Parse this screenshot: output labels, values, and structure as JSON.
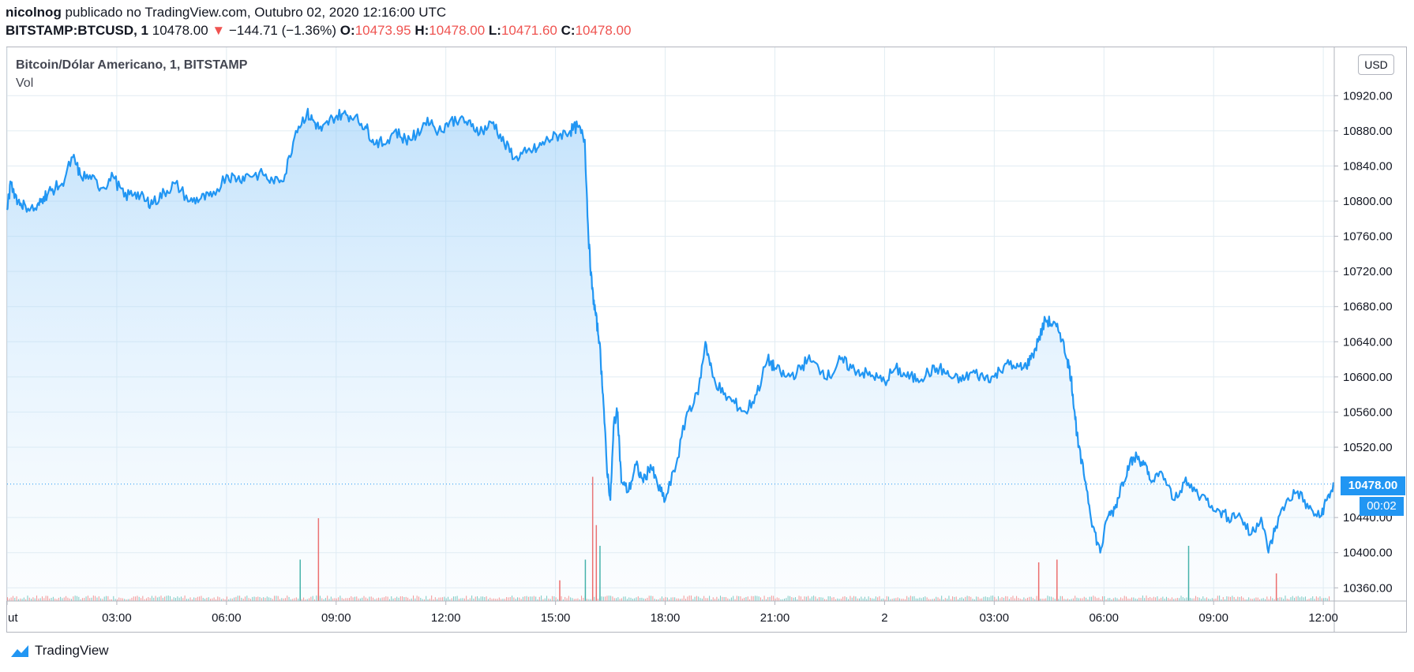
{
  "header": {
    "author": "nicolnog",
    "published_text": " publicado no TradingView.com, Outubro 02, 2020 12:16:00 UTC",
    "symbol": "BITSTAMP:BTCUSD, 1",
    "last": "10478.00",
    "arrow": "▼",
    "change": "−144.71 (−1.36%)",
    "o_label": "O:",
    "o_value": "10473.95",
    "h_label": "H:",
    "h_value": "10478.00",
    "l_label": "L:",
    "l_value": "10471.60",
    "c_label": "C:",
    "c_value": "10478.00"
  },
  "legend": {
    "title": "Bitcoin/Dólar Americano, 1, BITSTAMP",
    "volume": "Vol"
  },
  "currency_badge": "USD",
  "last_price_tag": "10478.00",
  "countdown_tag": "00:02",
  "brand": "TradingView",
  "colors": {
    "line": "#2196f3",
    "area_top": "#90caf9",
    "grid": "#e1ecf2",
    "vol_up": "#26a69a",
    "vol_down": "#ef5350",
    "tag_bg": "#2196f3"
  },
  "chart_data": {
    "type": "area",
    "y_ticks": [
      10360,
      10400,
      10440,
      10520,
      10560,
      10600,
      10640,
      10680,
      10720,
      10760,
      10800,
      10840,
      10880,
      10920
    ],
    "y_tick_labels": [
      "10360.00",
      "10400.00",
      "10440.00",
      "10520.00",
      "10560.00",
      "10600.00",
      "10640.00",
      "10680.00",
      "10720.00",
      "10760.00",
      "10800.00",
      "10840.00",
      "10880.00",
      "10920.00"
    ],
    "ylim": [
      10345,
      10975
    ],
    "x_tick_labels": [
      "ut",
      "03:00",
      "06:00",
      "09:00",
      "12:00",
      "15:00",
      "18:00",
      "21:00",
      "2",
      "03:00",
      "06:00",
      "09:00",
      "12:00"
    ],
    "x_tick_hours": [
      0,
      3,
      6,
      9,
      12,
      15,
      18,
      21,
      24,
      27,
      30,
      33,
      36
    ],
    "xlim_hours": [
      0,
      36.3
    ],
    "last_price": 10478,
    "series": [
      {
        "hours": [
          0,
          0.1,
          0.3,
          0.5,
          0.8,
          1.0,
          1.2,
          1.5,
          1.8,
          2.0,
          2.3,
          2.6,
          2.9,
          3.2,
          3.5,
          3.8,
          4.0,
          4.3,
          4.6,
          5.0,
          5.3,
          5.6,
          6.0,
          6.3,
          6.6,
          7.0,
          7.3,
          7.6,
          7.9,
          8.2,
          8.4,
          8.6,
          8.9,
          9.2,
          9.5,
          9.8,
          10.0,
          10.3,
          10.6,
          10.9,
          11.2,
          11.5,
          11.8,
          12.1,
          12.4,
          12.7,
          13.0,
          13.3,
          13.6,
          13.9,
          14.2,
          14.5,
          14.8,
          15.1,
          15.4,
          15.6,
          15.8,
          15.9,
          16.0,
          16.1,
          16.2,
          16.3,
          16.4,
          16.5,
          16.6,
          16.7,
          16.8,
          17.0,
          17.2,
          17.4,
          17.6,
          17.8,
          18.0,
          18.3,
          18.6,
          18.9,
          19.1,
          19.3,
          19.6,
          19.9,
          20.2,
          20.5,
          20.8,
          21.0,
          21.3,
          21.6,
          21.9,
          22.2,
          22.5,
          22.8,
          23.1,
          23.4,
          23.7,
          24.0,
          24.3,
          24.6,
          24.9,
          25.2,
          25.5,
          25.8,
          26.1,
          26.4,
          26.7,
          27.0,
          27.3,
          27.6,
          27.8,
          28.0,
          28.2,
          28.4,
          28.6,
          28.8,
          29.0,
          29.1,
          29.2,
          29.3,
          29.5,
          29.7,
          29.9,
          30.1,
          30.3,
          30.5,
          30.7,
          30.9,
          31.1,
          31.3,
          31.6,
          31.9,
          32.2,
          32.5,
          32.8,
          33.1,
          33.4,
          33.7,
          34.0,
          34.3,
          34.5,
          34.7,
          35.0,
          35.3,
          35.6,
          35.9,
          36.1,
          36.3
        ],
        "values": [
          10790,
          10820,
          10800,
          10795,
          10790,
          10805,
          10812,
          10820,
          10850,
          10830,
          10825,
          10815,
          10828,
          10805,
          10810,
          10800,
          10798,
          10810,
          10820,
          10800,
          10803,
          10805,
          10830,
          10825,
          10830,
          10830,
          10820,
          10830,
          10880,
          10900,
          10890,
          10880,
          10895,
          10900,
          10895,
          10885,
          10870,
          10865,
          10880,
          10870,
          10875,
          10895,
          10880,
          10890,
          10895,
          10885,
          10880,
          10890,
          10865,
          10850,
          10855,
          10860,
          10870,
          10875,
          10880,
          10885,
          10870,
          10760,
          10700,
          10670,
          10640,
          10580,
          10500,
          10460,
          10550,
          10560,
          10480,
          10470,
          10500,
          10480,
          10500,
          10475,
          10460,
          10500,
          10560,
          10580,
          10640,
          10600,
          10580,
          10570,
          10560,
          10580,
          10620,
          10610,
          10600,
          10605,
          10620,
          10610,
          10600,
          10620,
          10610,
          10605,
          10600,
          10595,
          10610,
          10600,
          10598,
          10605,
          10610,
          10600,
          10595,
          10605,
          10600,
          10600,
          10615,
          10610,
          10610,
          10620,
          10640,
          10665,
          10660,
          10650,
          10620,
          10600,
          10560,
          10520,
          10480,
          10430,
          10400,
          10440,
          10450,
          10480,
          10500,
          10510,
          10500,
          10480,
          10490,
          10460,
          10480,
          10470,
          10460,
          10450,
          10440,
          10445,
          10420,
          10440,
          10400,
          10430,
          10460,
          10470,
          10450,
          10440,
          10460,
          10478
        ]
      }
    ],
    "volume_spikes_hours": [
      8.0,
      8.5,
      15.1,
      15.8,
      16.0,
      16.1,
      16.2,
      28.2,
      28.7,
      32.3,
      34.7
    ],
    "volume_spikes_heights": [
      0.3,
      0.6,
      0.15,
      0.3,
      0.9,
      0.55,
      0.4,
      0.28,
      0.3,
      0.4,
      0.2
    ]
  }
}
